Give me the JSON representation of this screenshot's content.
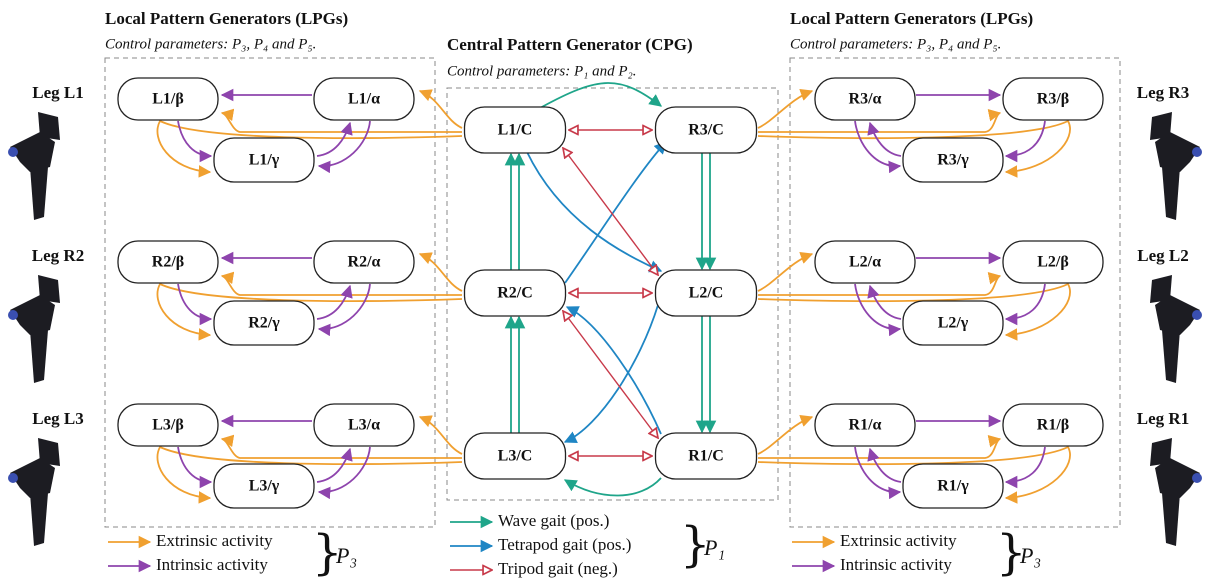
{
  "left_lpg": {
    "title": "Local Pattern Generators (LPGs)",
    "subtitle": "Control parameters: P₃, P₄ and P₅.",
    "nodes": [
      "L1/β",
      "L1/α",
      "L1/γ",
      "R2/β",
      "R2/α",
      "R2/γ",
      "L3/β",
      "L3/α",
      "L3/γ"
    ]
  },
  "cpg": {
    "title": "Central Pattern Generator (CPG)",
    "subtitle": "Control parameters: P₁ and P₂.",
    "nodes": [
      "L1/C",
      "R3/C",
      "R2/C",
      "L2/C",
      "L3/C",
      "R1/C"
    ]
  },
  "right_lpg": {
    "title": "Local Pattern Generators (LPGs)",
    "subtitle": "Control parameters: P₃, P₄ and P₅.",
    "nodes": [
      "R3/α",
      "R3/β",
      "R3/γ",
      "L2/α",
      "L2/β",
      "L2/γ",
      "R1/α",
      "R1/β",
      "R1/γ"
    ]
  },
  "legs": {
    "left": [
      "Leg L1",
      "Leg R2",
      "Leg L3"
    ],
    "right": [
      "Leg R3",
      "Leg L2",
      "Leg R1"
    ]
  },
  "legends": {
    "left": {
      "items": [
        "Extrinsic activity",
        "Intrinsic activity"
      ],
      "parameter": "P₃"
    },
    "center": {
      "items": [
        "Wave gait (pos.)",
        "Tetrapod gait (pos.)",
        "Tripod gait (neg.)"
      ],
      "parameter": "P₁"
    },
    "right": {
      "items": [
        "Extrinsic activity",
        "Intrinsic activity"
      ],
      "parameter": "P₃"
    }
  }
}
